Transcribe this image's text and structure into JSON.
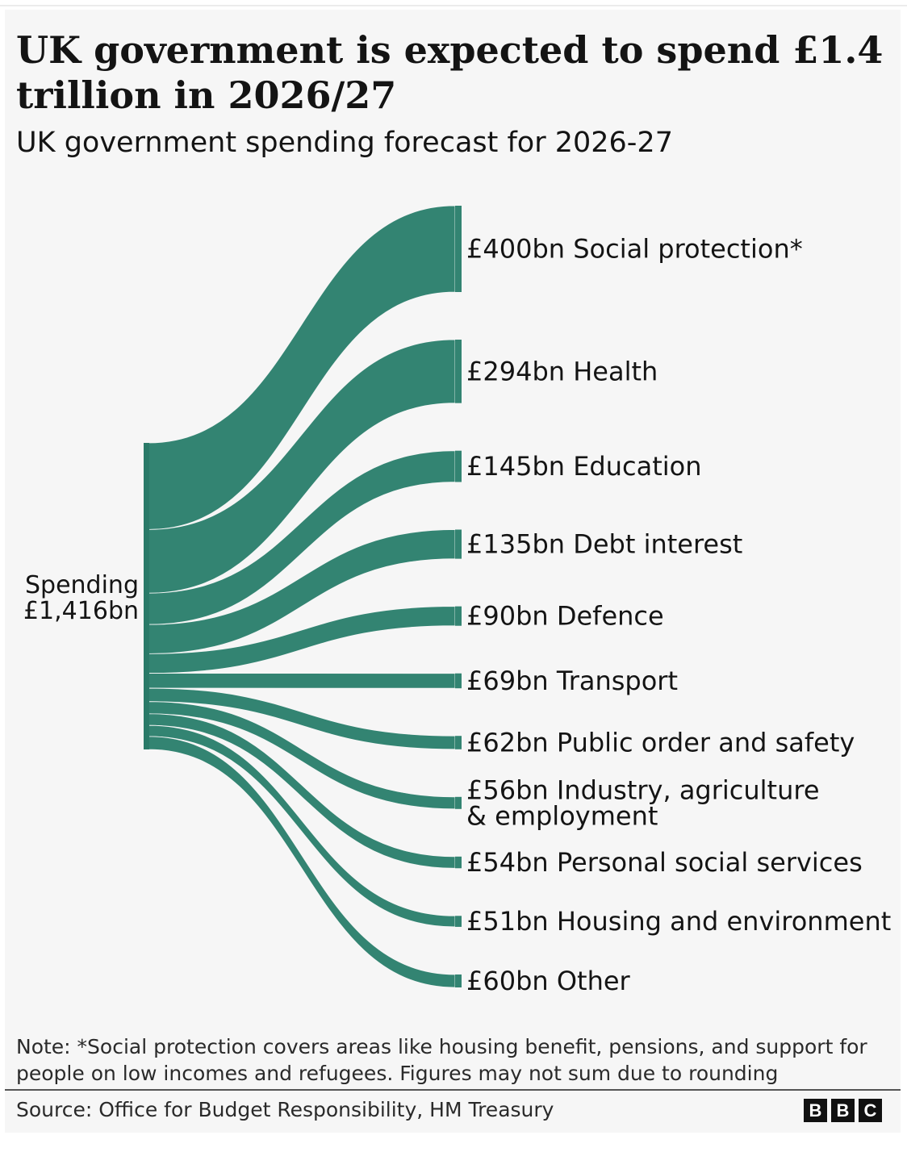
{
  "title": "UK government is expected to spend £1.4 trillion in 2026/27",
  "subtitle": "UK government spending forecast for 2026-27",
  "colors": {
    "flow": "#338472",
    "background": "#f6f6f6",
    "text": "#141414"
  },
  "chart_data": {
    "type": "sankey",
    "title": "UK government is expected to spend £1.4 trillion in 2026/27",
    "subtitle": "UK government spending forecast for 2026-27",
    "source": {
      "label_line1": "Spending",
      "label_line2": "£1,416bn",
      "value": 1416
    },
    "unit": "£bn",
    "flows": [
      {
        "name": "Social protection*",
        "value": 400,
        "label": [
          "£400bn Social protection*"
        ]
      },
      {
        "name": "Health",
        "value": 294,
        "label": [
          "£294bn Health"
        ]
      },
      {
        "name": "Education",
        "value": 145,
        "label": [
          "£145bn Education"
        ]
      },
      {
        "name": "Debt interest",
        "value": 135,
        "label": [
          "£135bn Debt interest"
        ]
      },
      {
        "name": "Defence",
        "value": 90,
        "label": [
          "£90bn Defence"
        ]
      },
      {
        "name": "Transport",
        "value": 69,
        "label": [
          "£69bn Transport"
        ]
      },
      {
        "name": "Public order and safety",
        "value": 62,
        "label": [
          "£62bn Public order and safety"
        ]
      },
      {
        "name": "Industry, agriculture & employment",
        "value": 56,
        "label": [
          "£56bn Industry, agriculture",
          "& employment"
        ]
      },
      {
        "name": "Personal social services",
        "value": 54,
        "label": [
          "£54bn Personal social services"
        ]
      },
      {
        "name": "Housing and environment",
        "value": 51,
        "label": [
          "£51bn Housing and environment"
        ]
      },
      {
        "name": "Other",
        "value": 60,
        "label": [
          "£60bn Other"
        ]
      }
    ]
  },
  "note": "Note: *Social protection covers areas like housing benefit, pensions, and support for people on low incomes and refugees. Figures may not sum due to rounding",
  "source_text": "Source: Office for Budget Responsibility, HM Treasury",
  "logo": [
    "B",
    "B",
    "C"
  ]
}
